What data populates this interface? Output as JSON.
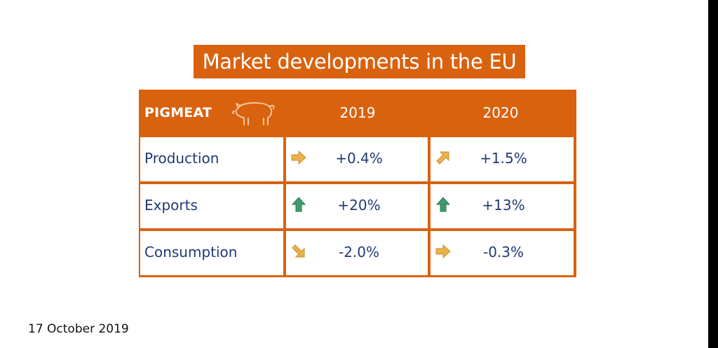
{
  "title": "Market developments in the EU",
  "table": {
    "header": {
      "category": "PIGMEAT",
      "year1": "2019",
      "year2": "2020",
      "icon": "pig-icon"
    },
    "rows": [
      {
        "label": "Production",
        "v2019": "+0.4%",
        "a2019": "right",
        "v2020": "+1.5%",
        "a2020": "up-right"
      },
      {
        "label": "Exports",
        "v2019": "+20%",
        "a2019": "up",
        "v2020": "+13%",
        "a2020": "up"
      },
      {
        "label": "Consumption",
        "v2019": "-2.0%",
        "a2019": "down-right",
        "v2020": "-0.3%",
        "a2020": "right"
      }
    ]
  },
  "footer": {
    "date": "17 October 2019"
  },
  "colors": {
    "accent": "#d9620f",
    "text": "#1f3b73",
    "arrow_up": "#3f9a6b",
    "arrow_neutral": "#e9b24a"
  }
}
